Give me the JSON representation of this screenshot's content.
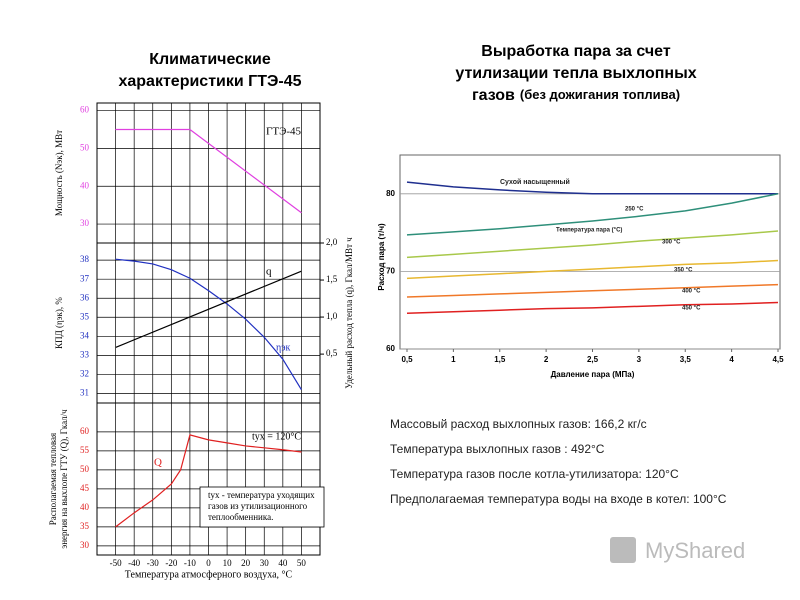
{
  "chart_data": [
    {
      "type": "line",
      "title": [
        "Климатические",
        "характеристики ГТЭ-45"
      ],
      "ylabel": [
        "Мощность (Nэк), МВт"
      ],
      "xlim": [
        -60,
        60
      ],
      "ylim": [
        25,
        62
      ],
      "yticks": [
        30,
        40,
        50,
        60
      ],
      "tick_color": "#e040e0",
      "grid": true,
      "series": [
        {
          "color": "#e040e0",
          "x": [
            -50,
            -10,
            50
          ],
          "values": [
            55,
            55,
            33
          ]
        }
      ],
      "annotations": [
        "ГТЭ-45"
      ]
    },
    {
      "type": "line",
      "ylabel": [
        "КПД (ηэк), %"
      ],
      "y2label": [
        "Удельный расход тепла (q), Гкал/МВт ч"
      ],
      "xlim": [
        -60,
        60
      ],
      "ylim": [
        30.5,
        38.9
      ],
      "yticks": [
        31,
        32,
        33,
        34,
        35,
        36,
        37,
        38
      ],
      "tick_color": "#2030c0",
      "y2lim": [
        -0.16,
        2.0
      ],
      "y2ticks": [
        {
          "value": 0.5,
          "label": "0,5"
        },
        {
          "value": 1.0,
          "label": "1,0"
        },
        {
          "value": 1.5,
          "label": "1,5"
        },
        {
          "value": 2.0,
          "label": "2,0"
        }
      ],
      "grid": true,
      "series": [
        {
          "color": "#2030c0",
          "x": [
            -50,
            -40,
            -30,
            -20,
            -10,
            0,
            10,
            20,
            30,
            40,
            50
          ],
          "values": [
            38.05,
            37.95,
            37.8,
            37.5,
            37.05,
            36.4,
            35.7,
            34.9,
            33.95,
            32.8,
            31.2
          ]
        },
        {
          "color": "#000000",
          "axis": "y2",
          "x": [
            -50,
            50
          ],
          "values": [
            0.59,
            1.62
          ]
        }
      ],
      "annotations": [
        "q",
        "ηэк"
      ]
    },
    {
      "type": "line",
      "ylabel": [
        "Располагаемая тепловая",
        "энергия на выхлопе ГТУ (Q), Гкал/ч"
      ],
      "xlabel": "Температура атмосферного воздуха, °С",
      "xlim": [
        -60,
        60
      ],
      "ylim": [
        27.6,
        67.6
      ],
      "yticks": [
        30,
        35,
        40,
        45,
        50,
        55,
        60
      ],
      "xticks": [
        -50,
        -40,
        -30,
        -20,
        -10,
        0,
        10,
        20,
        30,
        40,
        50
      ],
      "tick_color": "#e02020",
      "grid": true,
      "series": [
        {
          "color": "#e02020",
          "x": [
            -50,
            -40,
            -30,
            -20,
            -15,
            -10,
            0,
            10,
            20,
            30,
            40,
            50
          ],
          "values": [
            35,
            38.7,
            42.1,
            46.3,
            50,
            59.2,
            57.9,
            57.1,
            56.3,
            55.8,
            55.3,
            54.7
          ]
        }
      ],
      "annotations": [
        "Q",
        "tух = 120°С",
        "tух - температура уходящих",
        "газов из утилизационного",
        "теплообменника."
      ]
    },
    {
      "type": "line",
      "title": [
        "Выработка пара за счет",
        "утилизации тепла выхлопных",
        "газов"
      ],
      "subtitle": "(без дожигания топлива)",
      "xlabel": "Давление пара (МПа)",
      "ylabel": [
        "Расход пара (т/ч)"
      ],
      "xlim": [
        0.5,
        4.5
      ],
      "ylim": [
        60,
        85
      ],
      "xticks": [
        {
          "value": 0.5,
          "label": "0,5"
        },
        1,
        {
          "value": 1.5,
          "label": "1,5"
        },
        2,
        {
          "value": 2.5,
          "label": "2,5"
        },
        3,
        {
          "value": 3.5,
          "label": "3,5"
        },
        4,
        {
          "value": 4.5,
          "label": "4,5"
        }
      ],
      "yticks": [
        60,
        70,
        80
      ],
      "grid": true,
      "x": [
        0.5,
        1,
        1.5,
        2,
        2.5,
        3,
        3.5,
        4,
        4.5
      ],
      "series": [
        {
          "name": "Сухой насыщенный",
          "color": "#1f2f8f",
          "values": [
            81.5,
            80.9,
            80.5,
            80.2,
            80.0,
            80.0,
            80.0,
            80.0,
            80.0
          ]
        },
        {
          "name": "250 °C",
          "color": "#2e8f7a",
          "values": [
            74.7,
            75.1,
            75.5,
            76.0,
            76.5,
            77.1,
            77.8,
            78.8,
            80.0
          ]
        },
        {
          "name": "300 °C",
          "color": "#a8c84a",
          "values": [
            71.8,
            72.2,
            72.6,
            73.0,
            73.4,
            73.9,
            74.3,
            74.7,
            75.2
          ]
        },
        {
          "name": "350 °C",
          "color": "#e8b830",
          "values": [
            69.1,
            69.4,
            69.7,
            70.0,
            70.3,
            70.6,
            70.9,
            71.1,
            71.4
          ]
        },
        {
          "name": "400 °C",
          "color": "#f07828",
          "values": [
            66.7,
            66.9,
            67.1,
            67.3,
            67.5,
            67.7,
            67.9,
            68.1,
            68.3
          ]
        },
        {
          "name": "450 °C",
          "color": "#e02020",
          "values": [
            64.6,
            64.8,
            65.0,
            65.2,
            65.3,
            65.5,
            65.7,
            65.8,
            66.0
          ]
        }
      ],
      "annotations": [
        "Температура пара (°C)"
      ]
    }
  ],
  "notes": [
    "Массовый расход выхлопных газов:  166,2 кг/с",
    "Температура выхлопных газов :  492°C",
    "Температура газов после котла-утилизатора: 120°C",
    "Предполагаемая температура воды на входе в котел:  100°C"
  ],
  "watermark": "MyShared"
}
